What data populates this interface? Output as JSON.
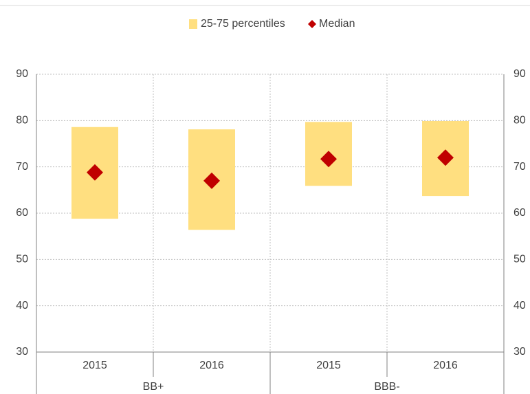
{
  "chart_data": {
    "type": "floating-bar",
    "categories": [
      "2015",
      "2016",
      "2015",
      "2016"
    ],
    "groups": [
      "BB+",
      "BBB-"
    ],
    "series": [
      {
        "name": "25-75 percentiles",
        "color": "#ffdf80",
        "low": [
          58.8,
          56.4,
          65.9,
          63.7
        ],
        "high": [
          78.6,
          78.1,
          79.7,
          79.9
        ]
      },
      {
        "name": "Median",
        "color": "#c00000",
        "values": [
          68.8,
          67.0,
          71.7,
          72.0
        ]
      }
    ],
    "ylim": [
      30,
      90
    ],
    "yticks": [
      30,
      40,
      50,
      60,
      70,
      80,
      90
    ],
    "y2lim": [
      30,
      90
    ],
    "y2ticks": [
      30,
      40,
      50,
      60,
      70,
      80,
      90
    ],
    "grid": true,
    "legend": "top"
  }
}
